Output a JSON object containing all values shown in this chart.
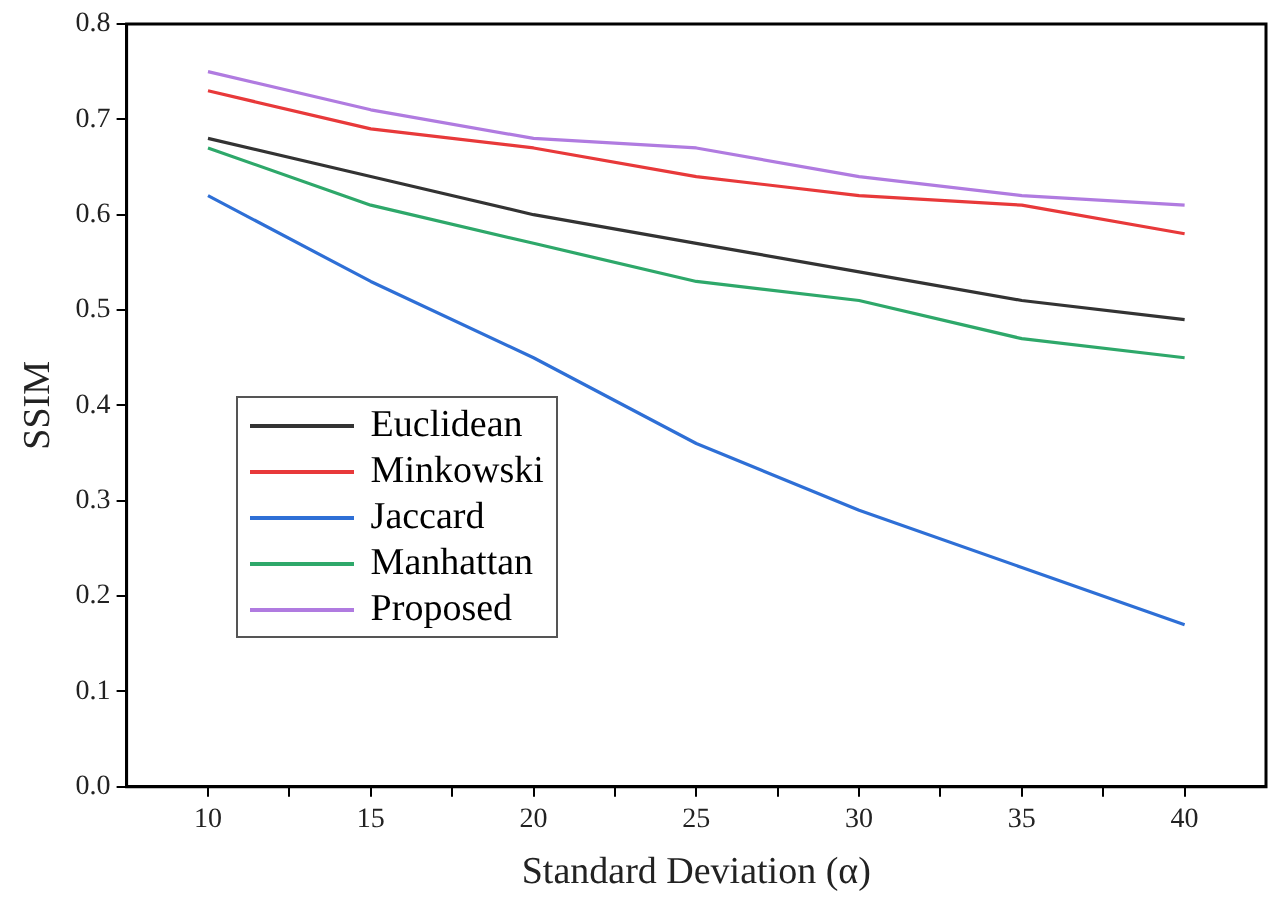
{
  "chart_data": {
    "type": "line",
    "xlabel": "Standard Deviation (α)",
    "ylabel": "SSIM",
    "x": [
      10,
      15,
      20,
      25,
      30,
      35,
      40
    ],
    "xlim": [
      7.5,
      42.5
    ],
    "xticks": [
      10,
      {
        "value": 12.5,
        "label": null
      },
      15,
      {
        "value": 17.5,
        "label": null
      },
      20,
      {
        "value": 22.5,
        "label": null
      },
      25,
      {
        "value": 27.5,
        "label": null
      },
      30,
      {
        "value": 32.5,
        "label": null
      },
      35,
      {
        "value": 37.5,
        "label": null
      },
      40
    ],
    "ylim": [
      0,
      0.8
    ],
    "yticks": [
      {
        "value": 0,
        "label": "0.0"
      },
      0.1,
      0.2,
      0.3,
      0.4,
      0.5,
      0.6,
      0.7,
      0.8
    ],
    "grid": false,
    "legend": "bottom left",
    "marker": "none",
    "line_style": "solid",
    "series": [
      {
        "name": "Euclidean",
        "color": "#333333",
        "values": [
          0.68,
          0.64,
          0.6,
          0.57,
          0.54,
          0.51,
          0.49
        ]
      },
      {
        "name": "Minkowski",
        "color": "#e8393a",
        "values": [
          0.73,
          0.69,
          0.67,
          0.64,
          0.62,
          0.61,
          0.58
        ]
      },
      {
        "name": "Jaccard",
        "color": "#2e6fd6",
        "values": [
          0.62,
          0.53,
          0.45,
          0.36,
          0.29,
          0.23,
          0.17
        ]
      },
      {
        "name": "Manhattan",
        "color": "#2ea86a",
        "values": [
          0.67,
          0.61,
          0.57,
          0.53,
          0.51,
          0.47,
          0.45
        ]
      },
      {
        "name": "Proposed",
        "color": "#b07be0",
        "values": [
          0.75,
          0.71,
          0.68,
          0.67,
          0.64,
          0.62,
          0.61
        ]
      }
    ]
  }
}
